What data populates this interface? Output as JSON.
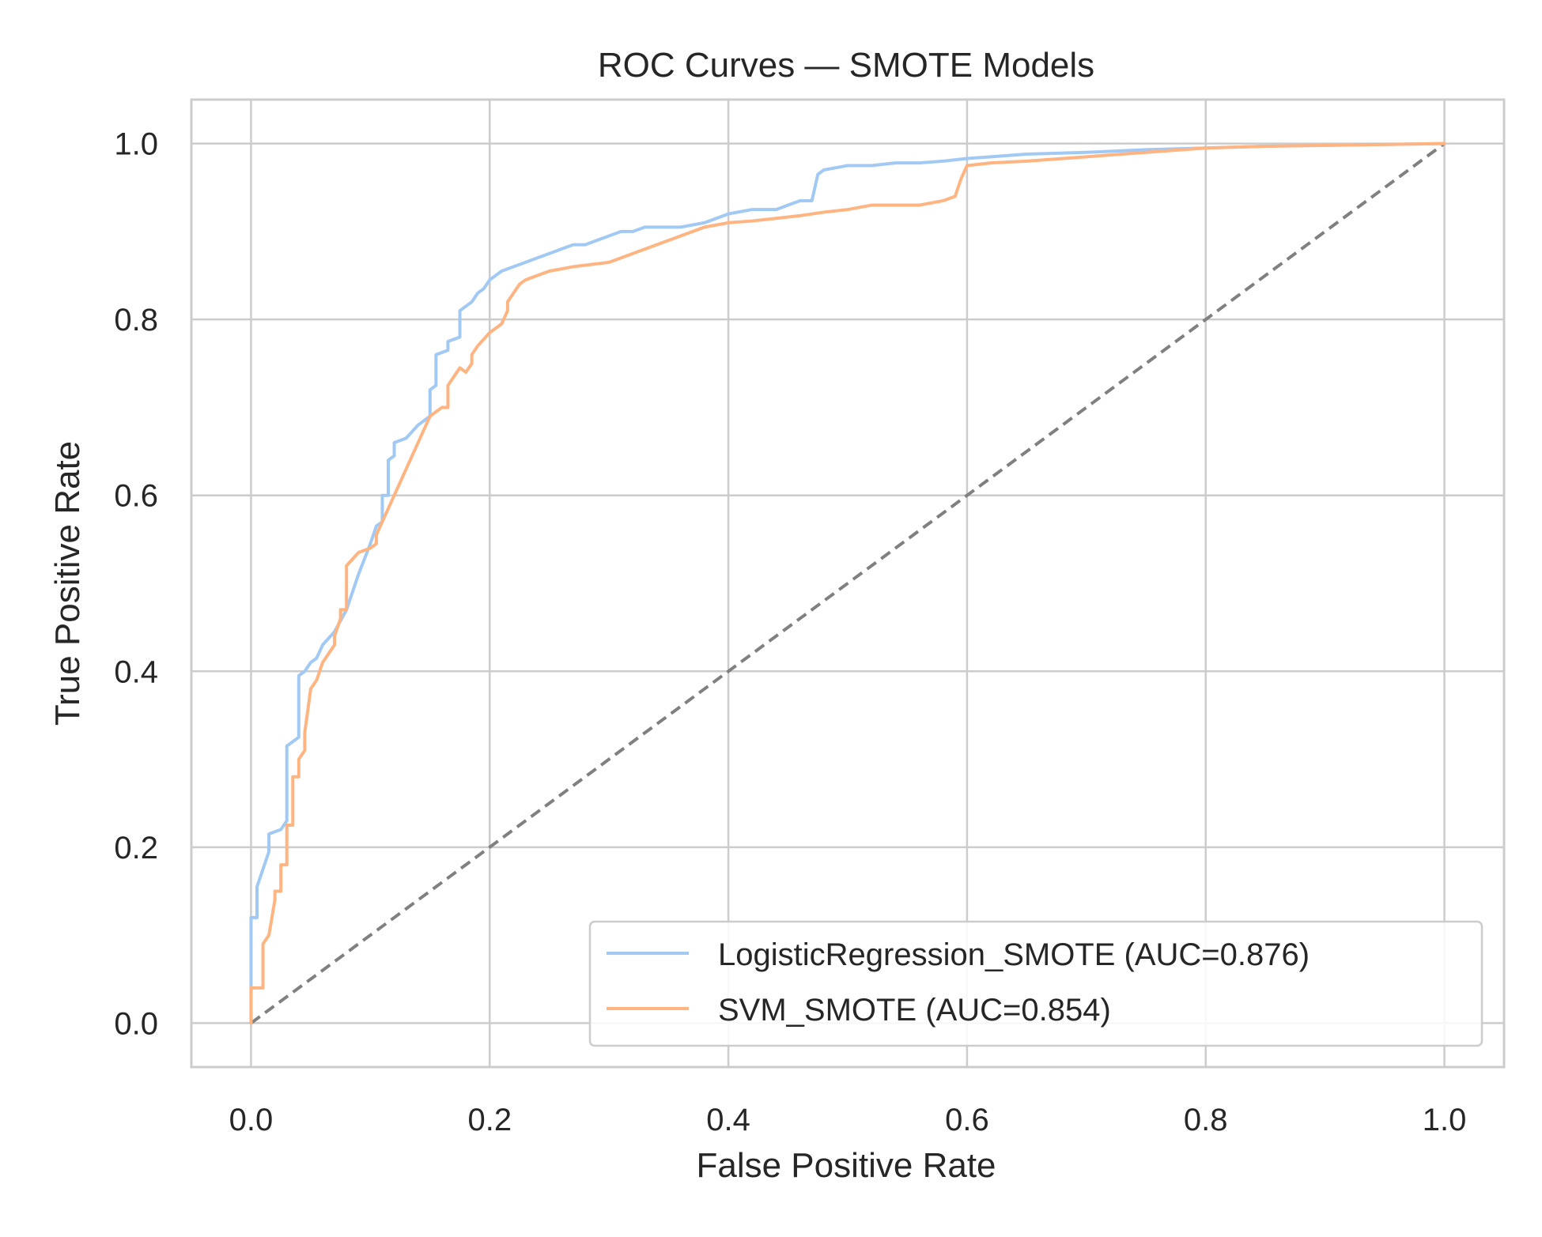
{
  "chart_data": {
    "type": "line",
    "title": "ROC Curves — SMOTE Models",
    "xlabel": "False Positive Rate",
    "ylabel": "True Positive Rate",
    "xlim": [
      -0.05,
      1.05
    ],
    "ylim": [
      -0.05,
      1.05
    ],
    "x_ticks": [
      "0.0",
      "0.2",
      "0.4",
      "0.6",
      "0.8",
      "1.0"
    ],
    "y_ticks": [
      "0.0",
      "0.2",
      "0.4",
      "0.6",
      "0.8",
      "1.0"
    ],
    "grid": true,
    "legend_position": "lower-right",
    "series": [
      {
        "name": "LogisticRegression_SMOTE (AUC=0.876)",
        "color": "#a1c9f4",
        "x": [
          0.0,
          0.0,
          0.005,
          0.005,
          0.015,
          0.015,
          0.025,
          0.03,
          0.03,
          0.035,
          0.04,
          0.04,
          0.045,
          0.05,
          0.055,
          0.06,
          0.07,
          0.08,
          0.09,
          0.1,
          0.105,
          0.11,
          0.11,
          0.115,
          0.115,
          0.12,
          0.12,
          0.13,
          0.14,
          0.15,
          0.15,
          0.155,
          0.155,
          0.165,
          0.165,
          0.175,
          0.175,
          0.18,
          0.185,
          0.19,
          0.195,
          0.2,
          0.205,
          0.21,
          0.22,
          0.23,
          0.24,
          0.25,
          0.26,
          0.27,
          0.28,
          0.29,
          0.3,
          0.31,
          0.32,
          0.33,
          0.34,
          0.36,
          0.38,
          0.39,
          0.4,
          0.42,
          0.44,
          0.45,
          0.46,
          0.47,
          0.475,
          0.48,
          0.5,
          0.52,
          0.54,
          0.56,
          0.58,
          0.6,
          0.62,
          0.65,
          0.7,
          0.75,
          0.8,
          0.85,
          0.9,
          0.95,
          1.0
        ],
        "y": [
          0.0,
          0.12,
          0.12,
          0.155,
          0.195,
          0.215,
          0.22,
          0.23,
          0.315,
          0.32,
          0.325,
          0.395,
          0.4,
          0.41,
          0.415,
          0.43,
          0.445,
          0.47,
          0.51,
          0.545,
          0.565,
          0.57,
          0.6,
          0.6,
          0.64,
          0.645,
          0.66,
          0.665,
          0.68,
          0.69,
          0.72,
          0.725,
          0.76,
          0.765,
          0.775,
          0.78,
          0.81,
          0.815,
          0.82,
          0.83,
          0.835,
          0.845,
          0.85,
          0.855,
          0.86,
          0.865,
          0.87,
          0.875,
          0.88,
          0.885,
          0.885,
          0.89,
          0.895,
          0.9,
          0.9,
          0.905,
          0.905,
          0.905,
          0.91,
          0.915,
          0.92,
          0.925,
          0.925,
          0.93,
          0.935,
          0.935,
          0.965,
          0.97,
          0.975,
          0.975,
          0.978,
          0.978,
          0.98,
          0.983,
          0.985,
          0.988,
          0.99,
          0.993,
          0.995,
          0.997,
          0.998,
          0.999,
          1.0
        ]
      },
      {
        "name": "SVM_SMOTE (AUC=0.854)",
        "color": "#ffb482",
        "x": [
          0.0,
          0.0,
          0.01,
          0.01,
          0.015,
          0.02,
          0.02,
          0.025,
          0.025,
          0.03,
          0.03,
          0.035,
          0.035,
          0.04,
          0.04,
          0.045,
          0.045,
          0.05,
          0.055,
          0.06,
          0.065,
          0.07,
          0.07,
          0.075,
          0.075,
          0.08,
          0.08,
          0.09,
          0.1,
          0.105,
          0.105,
          0.11,
          0.12,
          0.13,
          0.14,
          0.15,
          0.16,
          0.165,
          0.165,
          0.17,
          0.175,
          0.18,
          0.185,
          0.185,
          0.19,
          0.2,
          0.21,
          0.215,
          0.215,
          0.22,
          0.225,
          0.23,
          0.24,
          0.25,
          0.27,
          0.3,
          0.32,
          0.34,
          0.36,
          0.38,
          0.4,
          0.42,
          0.44,
          0.46,
          0.48,
          0.5,
          0.52,
          0.56,
          0.58,
          0.59,
          0.595,
          0.6,
          0.62,
          0.65,
          0.7,
          0.75,
          0.8,
          0.85,
          0.9,
          0.95,
          1.0
        ],
        "y": [
          0.0,
          0.04,
          0.04,
          0.09,
          0.1,
          0.14,
          0.15,
          0.15,
          0.18,
          0.18,
          0.225,
          0.225,
          0.28,
          0.28,
          0.3,
          0.31,
          0.33,
          0.38,
          0.39,
          0.41,
          0.42,
          0.43,
          0.44,
          0.46,
          0.47,
          0.47,
          0.52,
          0.535,
          0.54,
          0.545,
          0.555,
          0.57,
          0.6,
          0.63,
          0.66,
          0.69,
          0.7,
          0.7,
          0.725,
          0.735,
          0.745,
          0.74,
          0.75,
          0.76,
          0.77,
          0.785,
          0.795,
          0.81,
          0.82,
          0.83,
          0.84,
          0.845,
          0.85,
          0.855,
          0.86,
          0.865,
          0.875,
          0.885,
          0.895,
          0.905,
          0.91,
          0.912,
          0.915,
          0.918,
          0.922,
          0.925,
          0.93,
          0.93,
          0.935,
          0.94,
          0.96,
          0.975,
          0.978,
          0.98,
          0.985,
          0.99,
          0.995,
          0.997,
          0.998,
          0.999,
          1.0
        ]
      }
    ],
    "reference_line": {
      "color": "#808080",
      "x": [
        0,
        1
      ],
      "y": [
        0,
        1
      ],
      "style": "dashed"
    }
  }
}
